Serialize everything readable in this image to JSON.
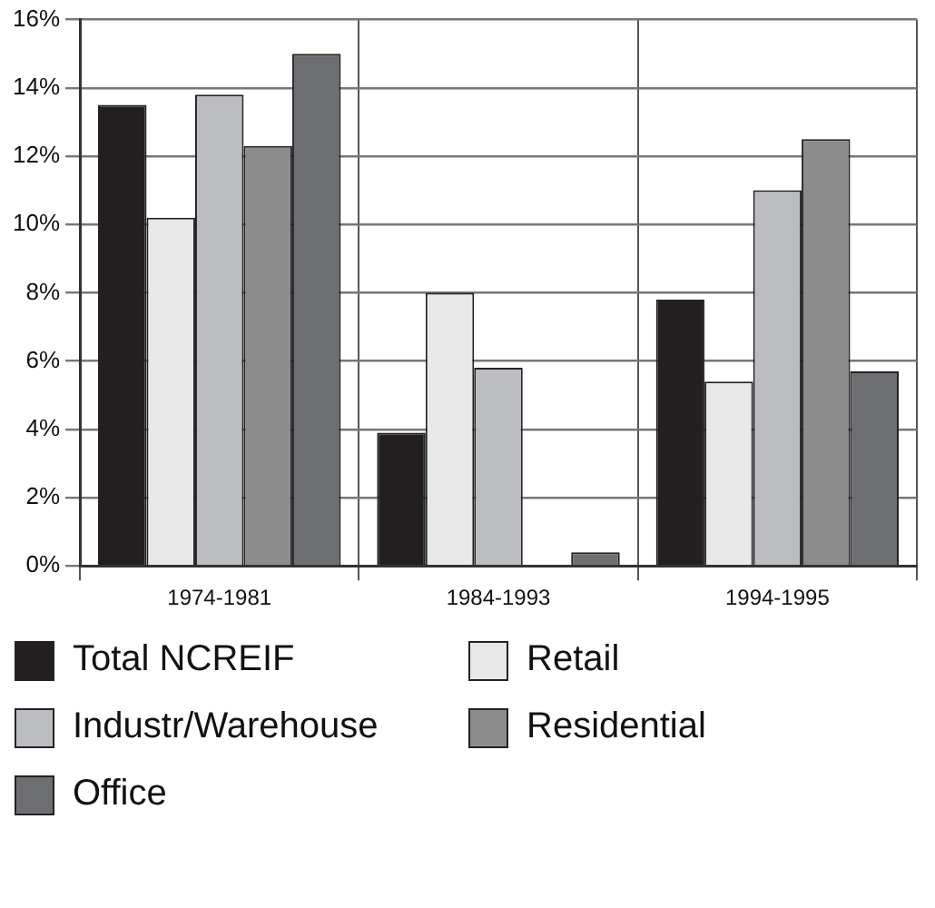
{
  "chart_data": {
    "type": "bar",
    "categories": [
      "1974-1981",
      "1984-1993",
      "1994-1995"
    ],
    "series": [
      {
        "name": "Total NCREIF",
        "color": "#231f20",
        "values": [
          13.5,
          3.9,
          7.8
        ]
      },
      {
        "name": "Retail",
        "color": "#e8e8e8",
        "values": [
          10.2,
          8.0,
          5.4
        ]
      },
      {
        "name": "Industr/Warehouse",
        "color": "#bcbdc0",
        "values": [
          13.8,
          5.8,
          11.0
        ]
      },
      {
        "name": "Residential",
        "color": "#8c8c8c",
        "values": [
          12.3,
          null,
          12.5
        ]
      },
      {
        "name": "Office",
        "color": "#6d6e71",
        "values": [
          15.0,
          0.4,
          5.7
        ]
      }
    ],
    "ylim": [
      0,
      16
    ],
    "yticks": [
      {
        "value": 0,
        "label": "0%"
      },
      {
        "value": 2,
        "label": "2%"
      },
      {
        "value": 4,
        "label": "4%"
      },
      {
        "value": 6,
        "label": "6%"
      },
      {
        "value": 8,
        "label": "8%"
      },
      {
        "value": 10,
        "label": "10%"
      },
      {
        "value": 12,
        "label": "12%"
      },
      {
        "value": 14,
        "label": "14%"
      },
      {
        "value": 16,
        "label": "16%"
      }
    ],
    "grid": true,
    "legend": "bottom"
  }
}
